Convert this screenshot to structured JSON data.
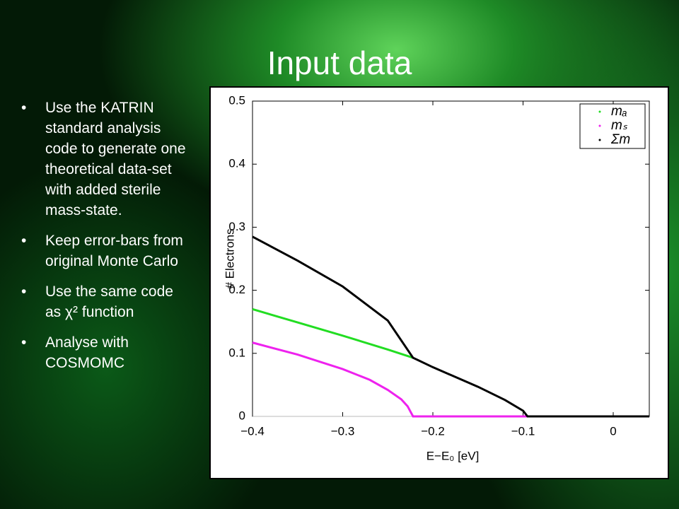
{
  "slide": {
    "title": "Input data",
    "bullets": [
      "Use the KATRIN standard analysis code  to generate one theoretical data-set with added sterile mass-state.",
      "Keep error-bars from original Monte Carlo",
      "Use the same code as χ² function",
      "Analyse with COSMOMC"
    ]
  },
  "chart_data": {
    "type": "line",
    "xlabel": "E−E₀ [eV]",
    "ylabel": "# Electrons",
    "xlim": [
      -0.4,
      0.04
    ],
    "ylim": [
      0,
      0.5
    ],
    "xticks": [
      {
        "value": -0.4,
        "label": "−0.4"
      },
      {
        "value": -0.3,
        "label": "−0.3"
      },
      {
        "value": -0.2,
        "label": "−0.2"
      },
      {
        "value": -0.1,
        "label": "−0.1"
      },
      0
    ],
    "yticks": [
      0,
      0.1,
      0.2,
      0.3,
      0.4,
      0.5
    ],
    "legend": "upper right",
    "series": [
      {
        "name": "mₐ",
        "color": "#22dd22",
        "x": [
          -0.4,
          -0.35,
          -0.3,
          -0.25,
          -0.222
        ],
        "values": [
          0.17,
          0.149,
          0.128,
          0.106,
          0.093
        ]
      },
      {
        "name": "mₛ",
        "color": "#ee22ee",
        "x": [
          -0.4,
          -0.35,
          -0.3,
          -0.27,
          -0.25,
          -0.235,
          -0.228,
          -0.222,
          -0.15,
          -0.095
        ],
        "values": [
          0.117,
          0.098,
          0.075,
          0.058,
          0.042,
          0.027,
          0.016,
          0,
          0,
          0
        ]
      },
      {
        "name": "Σm",
        "color": "#000000",
        "x": [
          -0.4,
          -0.35,
          -0.3,
          -0.25,
          -0.222,
          -0.2,
          -0.15,
          -0.12,
          -0.1,
          -0.095,
          0.04
        ],
        "values": [
          0.285,
          0.247,
          0.206,
          0.152,
          0.093,
          0.078,
          0.047,
          0.026,
          0.009,
          0,
          0
        ]
      }
    ]
  }
}
